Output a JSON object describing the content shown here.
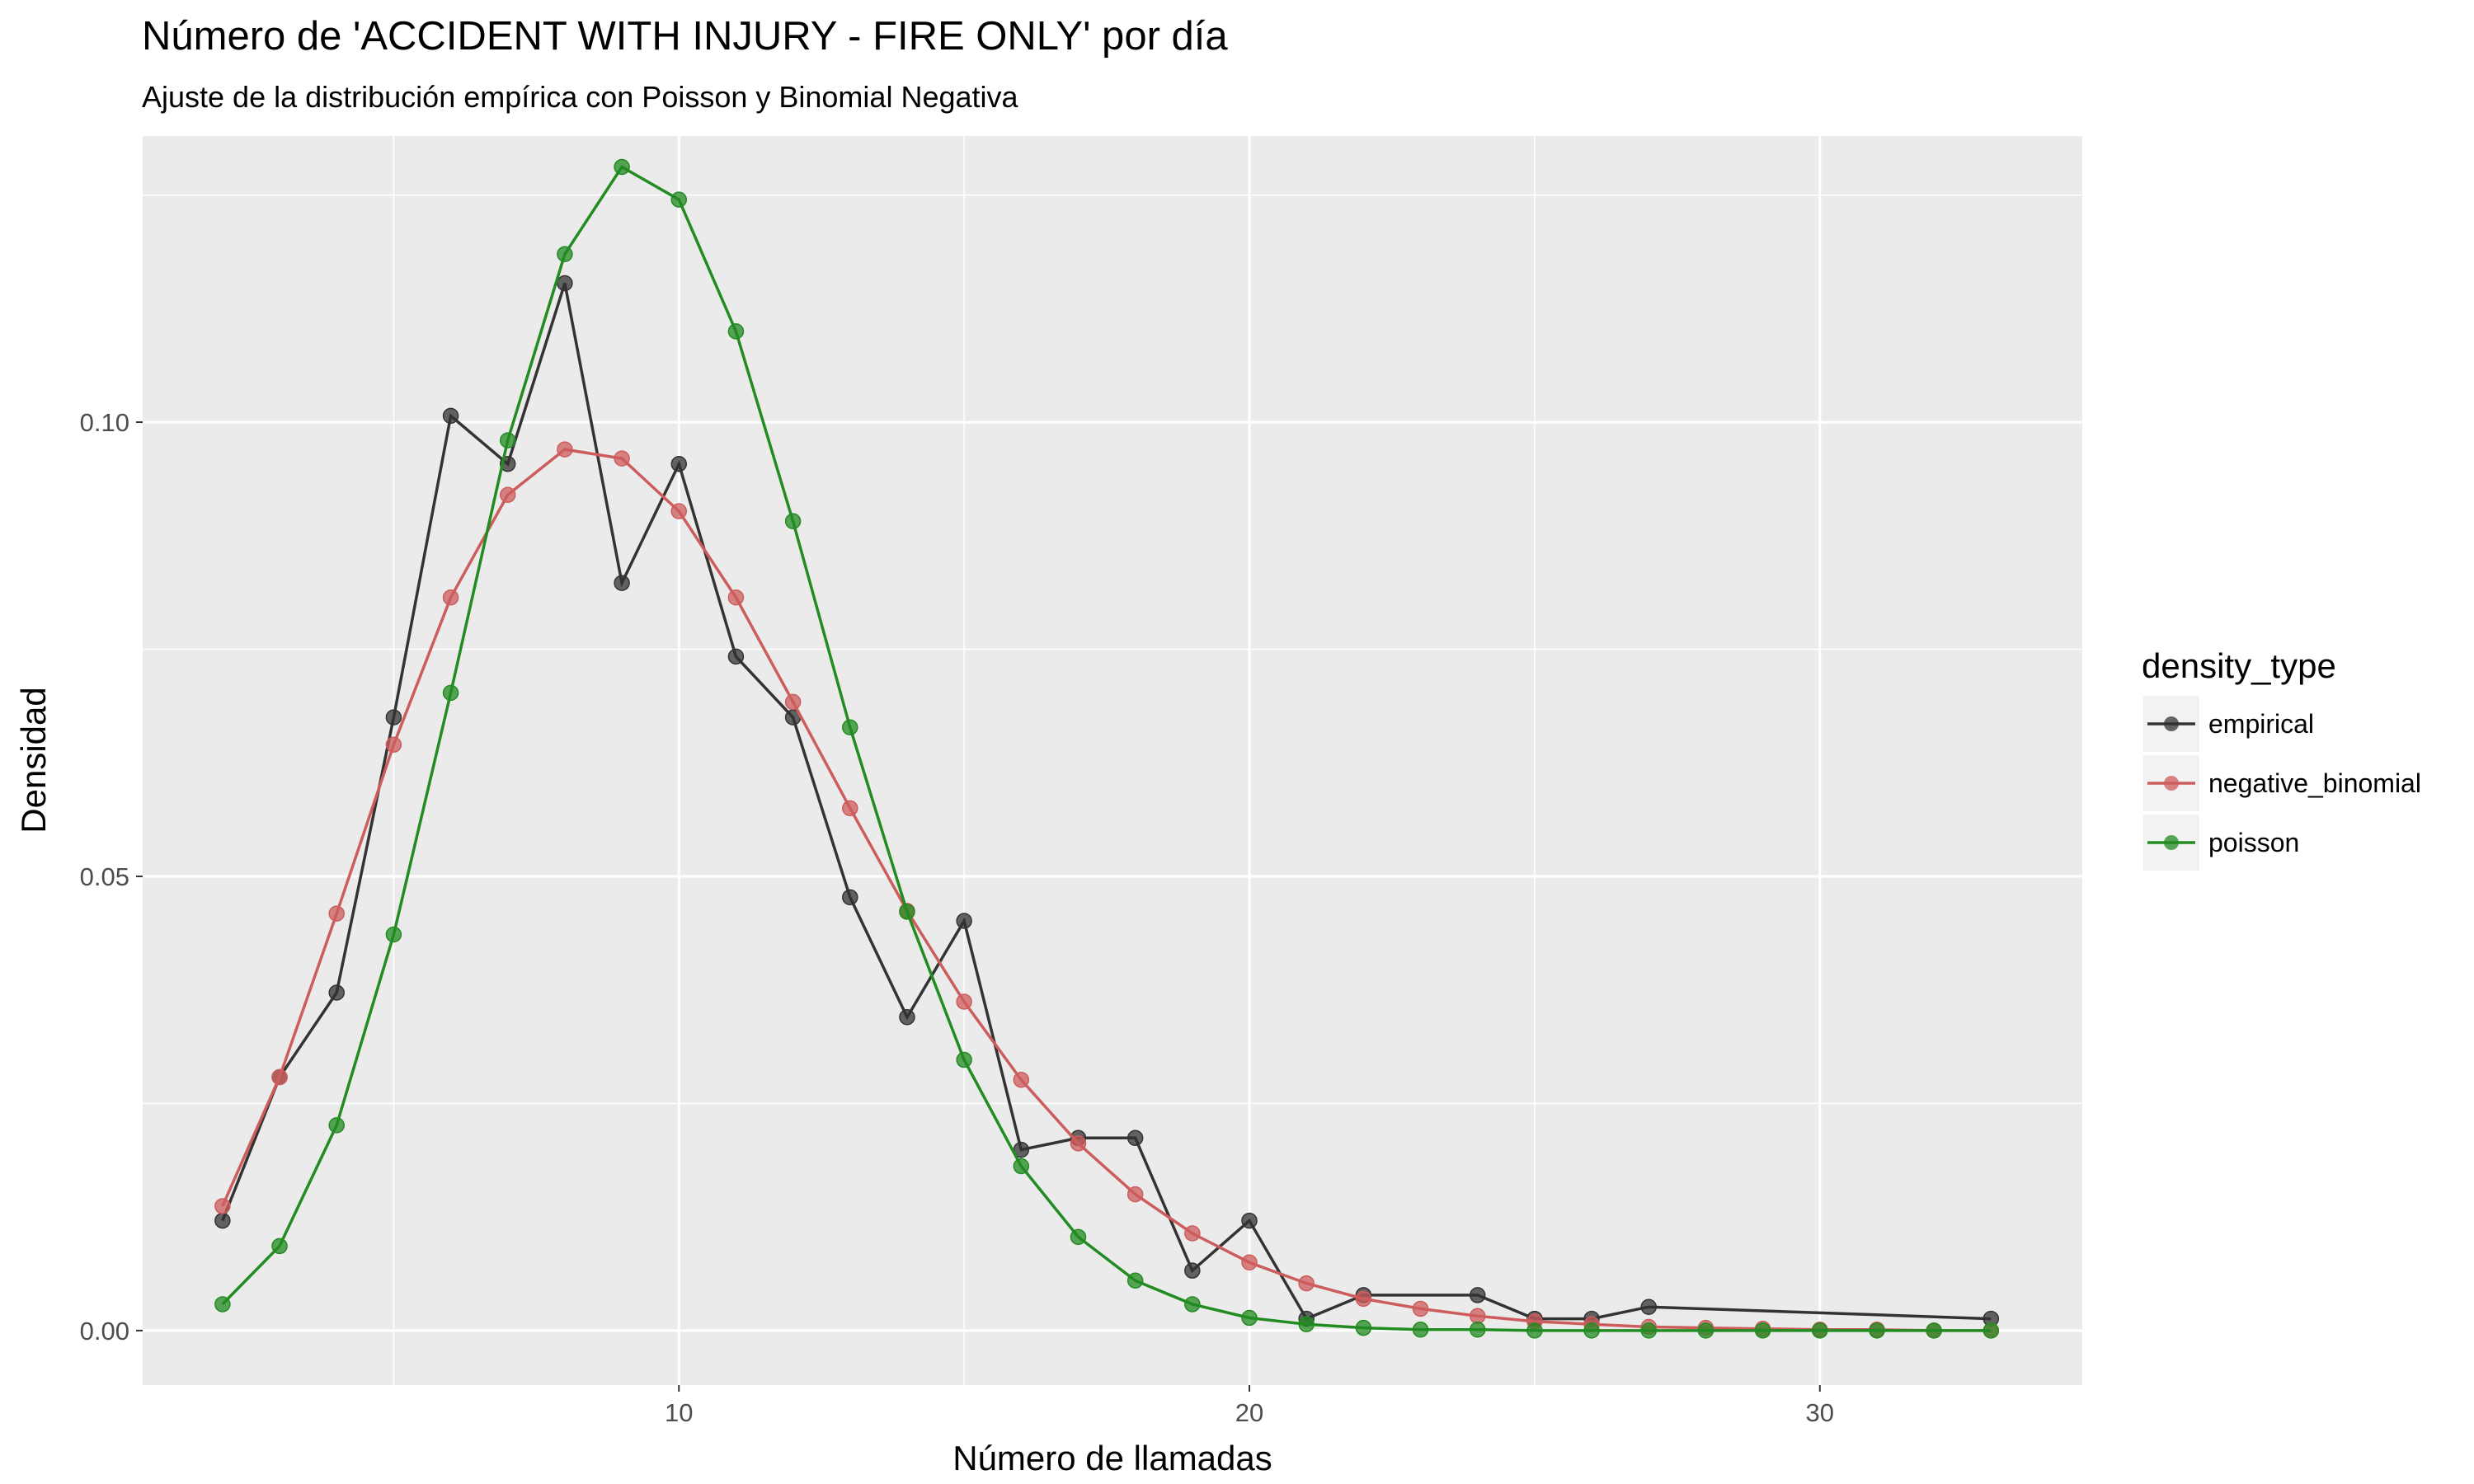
{
  "chart_data": {
    "type": "line",
    "title": "Número de 'ACCIDENT WITH INJURY - FIRE ONLY' por día",
    "subtitle": "Ajuste de la distribución empírica con Poisson y Binomial Negativa",
    "xlabel": "Número de llamadas",
    "ylabel": "Densidad",
    "xlim": [
      0.6,
      34.6
    ],
    "ylim": [
      -0.006,
      0.1315
    ],
    "x_ticks": [
      10,
      20,
      30
    ],
    "x_tick_labels": [
      "10",
      "20",
      "30"
    ],
    "y_ticks": [
      0.0,
      0.05,
      0.1
    ],
    "y_tick_labels": [
      "0.00",
      "0.05",
      "0.10"
    ],
    "grid": true,
    "legend": {
      "title": "density_type",
      "position": "right",
      "entries": [
        "empirical",
        "negative_binomial",
        "poisson"
      ]
    },
    "series": [
      {
        "name": "empirical",
        "color": "#333333",
        "x": [
          2,
          3,
          4,
          5,
          6,
          7,
          8,
          9,
          10,
          11,
          12,
          13,
          14,
          15,
          16,
          17,
          18,
          19,
          20,
          21,
          22,
          24,
          25,
          26,
          27,
          33
        ],
        "y": [
          0.0121,
          0.0279,
          0.0372,
          0.0675,
          0.1007,
          0.0954,
          0.1153,
          0.0823,
          0.0954,
          0.0742,
          0.0675,
          0.0477,
          0.0345,
          0.0451,
          0.0199,
          0.0212,
          0.0212,
          0.0066,
          0.0121,
          0.0013,
          0.0039,
          0.0039,
          0.0013,
          0.0013,
          0.0026,
          0.0013
        ]
      },
      {
        "name": "negative_binomial",
        "color": "#cd5c5c",
        "x": [
          2,
          3,
          4,
          5,
          6,
          7,
          8,
          9,
          10,
          11,
          12,
          13,
          14,
          15,
          16,
          17,
          18,
          19,
          20,
          21,
          22,
          23,
          24,
          25,
          26,
          27,
          28,
          29,
          30,
          31,
          32,
          33
        ],
        "y": [
          0.0137,
          0.0279,
          0.0459,
          0.0645,
          0.0807,
          0.092,
          0.097,
          0.096,
          0.0902,
          0.0807,
          0.0692,
          0.0575,
          0.0462,
          0.0362,
          0.0276,
          0.0206,
          0.015,
          0.0107,
          0.0075,
          0.0052,
          0.0035,
          0.0024,
          0.0016,
          0.001,
          0.0007,
          0.0004,
          0.0003,
          0.0002,
          0.0001,
          0.0001,
          0.0,
          0.0
        ]
      },
      {
        "name": "poisson",
        "color": "#228b22",
        "x": [
          2,
          3,
          4,
          5,
          6,
          7,
          8,
          9,
          10,
          11,
          12,
          13,
          14,
          15,
          16,
          17,
          18,
          19,
          20,
          21,
          22,
          23,
          24,
          25,
          26,
          27,
          28,
          29,
          30,
          31,
          32,
          33
        ],
        "y": [
          0.0029,
          0.0093,
          0.0226,
          0.0436,
          0.0702,
          0.098,
          0.1185,
          0.1281,
          0.1245,
          0.11,
          0.0891,
          0.0664,
          0.0461,
          0.0298,
          0.0181,
          0.0103,
          0.0055,
          0.0029,
          0.0014,
          0.0007,
          0.0003,
          0.0001,
          0.0001,
          0.0,
          0.0,
          0.0,
          0.0,
          0.0,
          0.0,
          0.0,
          0.0,
          0.0
        ]
      }
    ]
  }
}
